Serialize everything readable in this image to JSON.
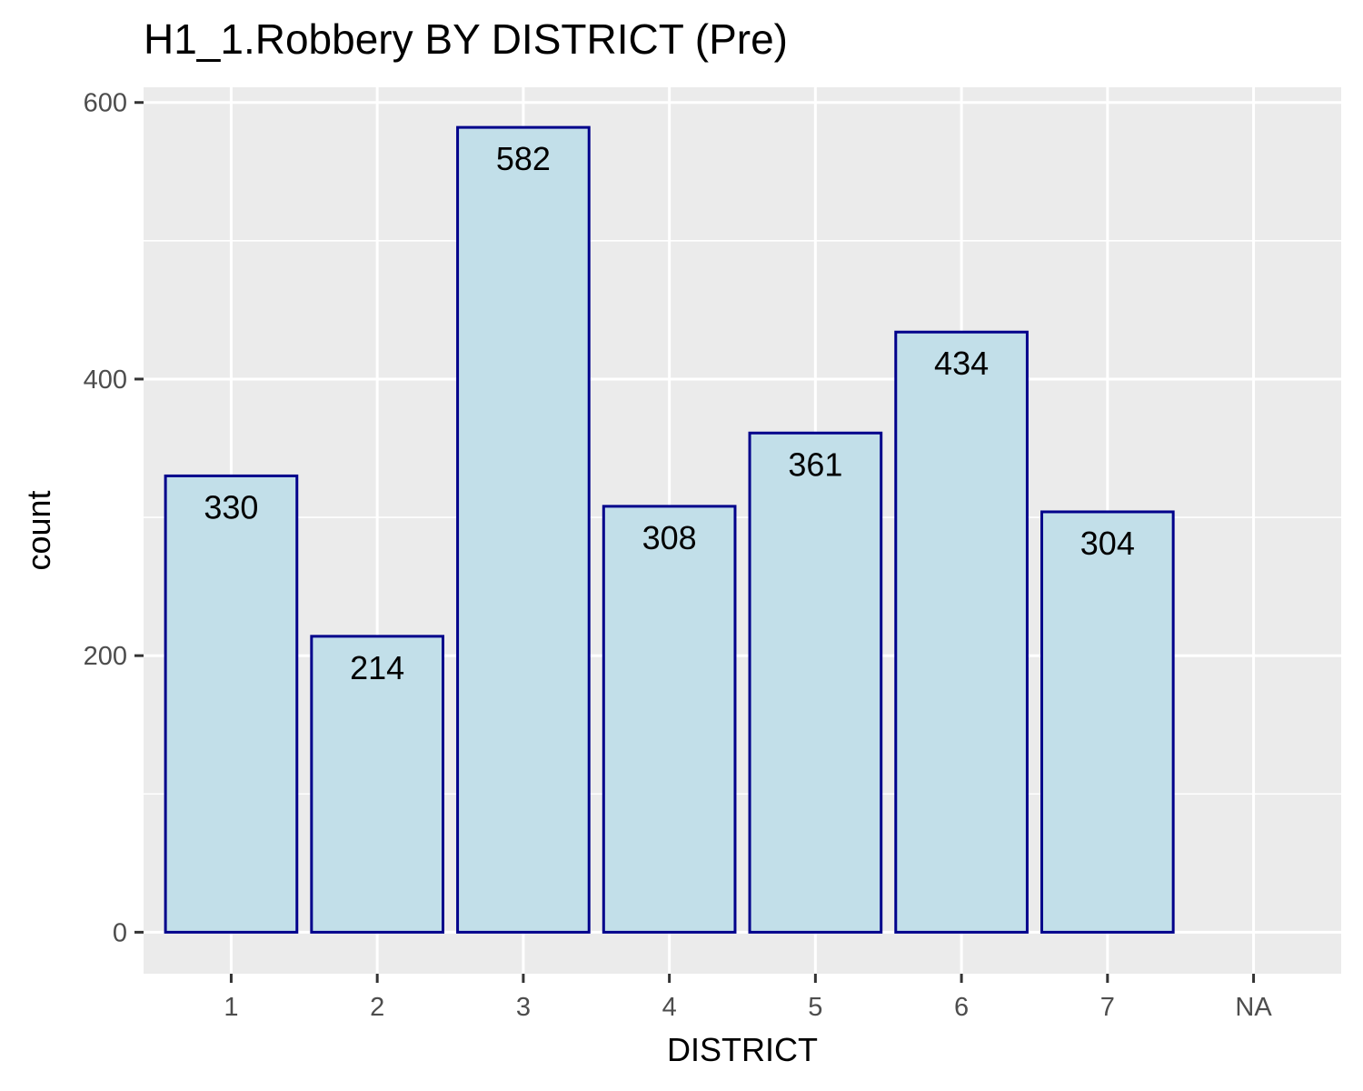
{
  "chart_data": {
    "type": "bar",
    "title": "H1_1.Robbery BY DISTRICT (Pre)",
    "xlabel": "DISTRICT",
    "ylabel": "count",
    "categories": [
      "1",
      "2",
      "3",
      "4",
      "5",
      "6",
      "7",
      "NA"
    ],
    "values": [
      330,
      214,
      582,
      308,
      361,
      434,
      304,
      null
    ],
    "data_labels": [
      "330",
      "214",
      "582",
      "308",
      "361",
      "434",
      "304",
      ""
    ],
    "y_ticks": [
      0,
      200,
      400,
      600
    ],
    "ylim": [
      -30,
      611
    ],
    "grid": true,
    "legend": "none",
    "colors": {
      "panel_background": "#ebebeb",
      "grid_line": "#ffffff",
      "bar_fill": "#c2dfe9",
      "bar_border": "#00008b",
      "tick_text": "#4d4d4d",
      "tick_mark": "#333333"
    }
  }
}
